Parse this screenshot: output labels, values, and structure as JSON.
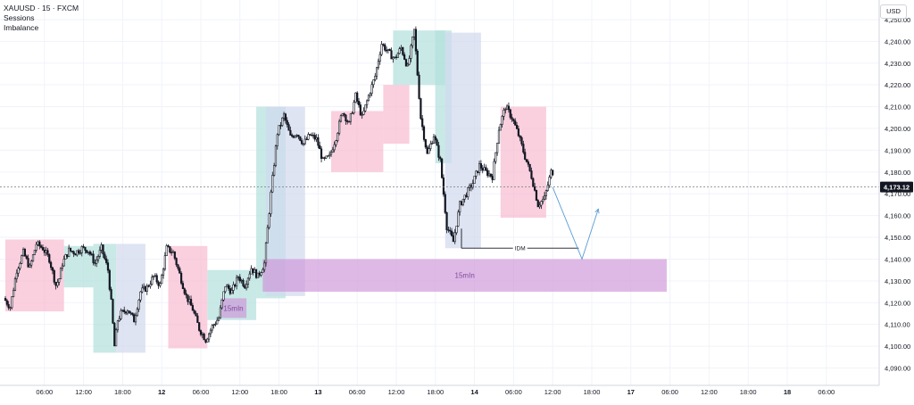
{
  "header": {
    "symbol": "XAUUSD · 15 · FXCM",
    "indicators": [
      "Sessions",
      "Imbalance"
    ],
    "currency_button": "USD"
  },
  "colors": {
    "asia_session": "#f8bbd0",
    "london_session": "#b2dfdb",
    "ny_session": "#d1d9ee",
    "imbalance_zone": "#ce93d8",
    "candle": "#131722",
    "price_line": "#787b86",
    "price_tag_bg": "#131722",
    "idm_line": "#131722",
    "projection": "#5b9bd5"
  },
  "chart_data": {
    "type": "candlestick",
    "symbol": "XAUUSD",
    "timeframe": "15",
    "current_price": "4,173.12",
    "y_ticks": [
      4090,
      4100,
      4110,
      4120,
      4130,
      4140,
      4150,
      4160,
      4170,
      4180,
      4190,
      4200,
      4210,
      4220,
      4230,
      4240,
      4250
    ],
    "y_tick_labels": [
      "4,090.00",
      "4,100.00",
      "4,110.00",
      "4,120.00",
      "4,130.00",
      "4,140.00",
      "4,150.00",
      "4,160.00",
      "4,170.00",
      "4,180.00",
      "4,190.00",
      "4,200.00",
      "4,210.00",
      "4,220.00",
      "4,230.00",
      "4,240.00",
      "4,250.00"
    ],
    "ylim": [
      4082,
      4259
    ],
    "x_ticks": [
      {
        "label": "06:00",
        "h": 6
      },
      {
        "label": "12:00",
        "h": 12
      },
      {
        "label": "18:00",
        "h": 18
      },
      {
        "label": "12",
        "h": 24
      },
      {
        "label": "06:00",
        "h": 30
      },
      {
        "label": "12:00",
        "h": 36
      },
      {
        "label": "18:00",
        "h": 42
      },
      {
        "label": "13",
        "h": 48
      },
      {
        "label": "06:00",
        "h": 54
      },
      {
        "label": "12:00",
        "h": 60
      },
      {
        "label": "18:00",
        "h": 66
      },
      {
        "label": "14",
        "h": 72
      },
      {
        "label": "06:00",
        "h": 78
      },
      {
        "label": "12:00",
        "h": 84
      },
      {
        "label": "18:00",
        "h": 90
      },
      {
        "label": "17",
        "h": 96
      },
      {
        "label": "06:00",
        "h": 102
      },
      {
        "label": "12:00",
        "h": 108
      },
      {
        "label": "18:00",
        "h": 114
      },
      {
        "label": "18",
        "h": 120
      },
      {
        "label": "06:00",
        "h": 126
      }
    ],
    "price_path": [
      [
        0,
        4122
      ],
      [
        1,
        4118
      ],
      [
        2,
        4135
      ],
      [
        3,
        4143
      ],
      [
        4,
        4136
      ],
      [
        5,
        4147
      ],
      [
        6,
        4145
      ],
      [
        7,
        4140
      ],
      [
        8,
        4128
      ],
      [
        8.5,
        4131
      ],
      [
        9,
        4138
      ],
      [
        10,
        4144
      ],
      [
        11,
        4143
      ],
      [
        12,
        4145
      ],
      [
        13,
        4144
      ],
      [
        14,
        4138
      ],
      [
        15,
        4145
      ],
      [
        16,
        4135
      ],
      [
        16.5,
        4120
      ],
      [
        17,
        4100
      ],
      [
        17.5,
        4112
      ],
      [
        18,
        4115
      ],
      [
        19,
        4117
      ],
      [
        20,
        4112
      ],
      [
        21,
        4125
      ],
      [
        22,
        4127
      ],
      [
        23,
        4132
      ],
      [
        24,
        4128
      ],
      [
        25,
        4145
      ],
      [
        26,
        4143
      ],
      [
        27,
        4133
      ],
      [
        28,
        4123
      ],
      [
        29,
        4117
      ],
      [
        30,
        4108
      ],
      [
        31,
        4103
      ],
      [
        32,
        4109
      ],
      [
        33,
        4113
      ],
      [
        34,
        4128
      ],
      [
        35,
        4125
      ],
      [
        36,
        4132
      ],
      [
        37,
        4128
      ],
      [
        38,
        4136
      ],
      [
        39,
        4132
      ],
      [
        40,
        4138
      ],
      [
        41,
        4170
      ],
      [
        42,
        4198
      ],
      [
        43,
        4206
      ],
      [
        44,
        4196
      ],
      [
        45,
        4198
      ],
      [
        46,
        4193
      ],
      [
        47,
        4197
      ],
      [
        48,
        4195
      ],
      [
        49,
        4185
      ],
      [
        50,
        4187
      ],
      [
        51,
        4196
      ],
      [
        52,
        4208
      ],
      [
        53,
        4202
      ],
      [
        54,
        4215
      ],
      [
        55,
        4205
      ],
      [
        56,
        4215
      ],
      [
        57,
        4224
      ],
      [
        58,
        4239
      ],
      [
        59,
        4235
      ],
      [
        60,
        4232
      ],
      [
        61,
        4237
      ],
      [
        62,
        4228
      ],
      [
        63,
        4245
      ],
      [
        64,
        4205
      ],
      [
        65,
        4188
      ],
      [
        66,
        4197
      ],
      [
        67,
        4185
      ],
      [
        68,
        4155
      ],
      [
        69,
        4148
      ],
      [
        70,
        4165
      ],
      [
        71,
        4170
      ],
      [
        72,
        4175
      ],
      [
        73,
        4183
      ],
      [
        74,
        4180
      ],
      [
        75,
        4178
      ],
      [
        76,
        4200
      ],
      [
        77,
        4210
      ],
      [
        78,
        4205
      ],
      [
        79,
        4197
      ],
      [
        80,
        4187
      ],
      [
        81,
        4178
      ],
      [
        82,
        4165
      ],
      [
        83,
        4168
      ],
      [
        84,
        4180
      ]
    ],
    "sessions": [
      {
        "type": "asia",
        "h0": 0,
        "h1": 9,
        "low": 4116,
        "high": 4149
      },
      {
        "type": "london",
        "h0": 9,
        "h1": 13.5,
        "low": 4127,
        "high": 4146
      },
      {
        "type": "london",
        "h0": 13.5,
        "h1": 17,
        "low": 4097,
        "high": 4147
      },
      {
        "type": "ny",
        "h0": 17,
        "h1": 21.5,
        "low": 4097,
        "high": 4147
      },
      {
        "type": "asia",
        "h0": 25,
        "h1": 31,
        "low": 4099,
        "high": 4146
      },
      {
        "type": "london",
        "h0": 31,
        "h1": 38.5,
        "low": 4112,
        "high": 4135
      },
      {
        "type": "london",
        "h0": 38.5,
        "h1": 43,
        "low": 4122,
        "high": 4210
      },
      {
        "type": "ny",
        "h0": 40,
        "h1": 46,
        "low": 4123,
        "high": 4210
      },
      {
        "type": "asia",
        "h0": 50,
        "h1": 58,
        "low": 4180,
        "high": 4208
      },
      {
        "type": "asia",
        "h0": 58,
        "h1": 62,
        "low": 4193,
        "high": 4220
      },
      {
        "type": "london",
        "h0": 59.5,
        "h1": 67.5,
        "low": 4220,
        "high": 4245
      },
      {
        "type": "london",
        "h0": 66,
        "h1": 68.5,
        "low": 4184,
        "high": 4245
      },
      {
        "type": "ny",
        "h0": 67.5,
        "h1": 73,
        "low": 4145,
        "high": 4244
      },
      {
        "type": "asia",
        "h0": 76,
        "h1": 83,
        "low": 4159,
        "high": 4210
      }
    ],
    "imbalance": {
      "h0": 39.5,
      "h1": 101.5,
      "low": 4125,
      "high": 4140,
      "label": "15mIn"
    },
    "imbalance_small": {
      "h0": 33,
      "h1": 37,
      "low": 4113,
      "high": 4122,
      "label": "15mIn"
    },
    "idm": {
      "h0": 70,
      "h1": 88,
      "price": 4145,
      "label": "IDM"
    },
    "projection": [
      [
        84,
        4173
      ],
      [
        88.5,
        4140
      ],
      [
        91,
        4163
      ]
    ]
  }
}
